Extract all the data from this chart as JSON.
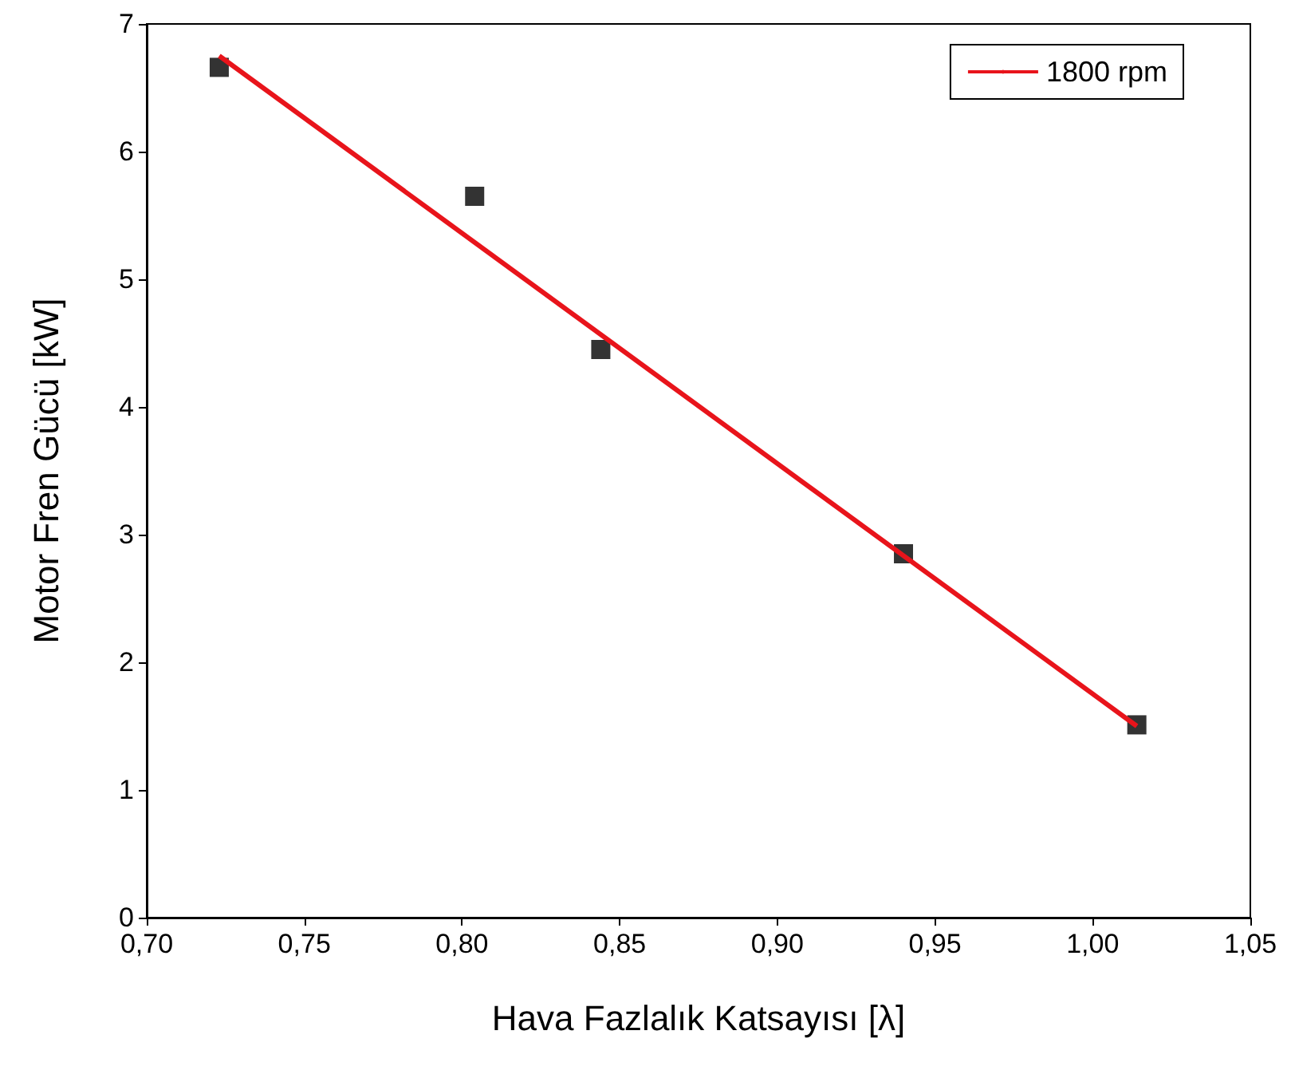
{
  "chart_data": {
    "type": "scatter",
    "xlabel": "Hava Fazlalık Katsayısı [λ]",
    "ylabel": "Motor Fren Gücü [kW]",
    "xlim": [
      0.7,
      1.05
    ],
    "xticks": [
      {
        "value": 0.7,
        "label": "0,70"
      },
      {
        "value": 0.75,
        "label": "0,75"
      },
      {
        "value": 0.8,
        "label": "0,80"
      },
      {
        "value": 0.85,
        "label": "0,85"
      },
      {
        "value": 0.9,
        "label": "0,90"
      },
      {
        "value": 0.95,
        "label": "0,95"
      },
      {
        "value": 1.0,
        "label": "1,00"
      },
      {
        "value": 1.05,
        "label": "1,05"
      }
    ],
    "ylim": [
      0,
      7
    ],
    "yticks": [
      0,
      1,
      2,
      3,
      4,
      5,
      6,
      7
    ],
    "grid": false,
    "legend": "top right",
    "series": [
      {
        "marker": "square",
        "color": "#000000",
        "x": [
          0.723,
          0.804,
          0.844,
          0.94,
          1.014
        ],
        "values": [
          6.66,
          5.65,
          4.45,
          2.85,
          1.51
        ]
      },
      {
        "type": "line",
        "name": "1800 rpm",
        "marker": "none",
        "line_style": "solid",
        "color": "#e8141b",
        "x": [
          0.723,
          1.014
        ],
        "values": [
          6.75,
          1.5
        ]
      }
    ]
  }
}
